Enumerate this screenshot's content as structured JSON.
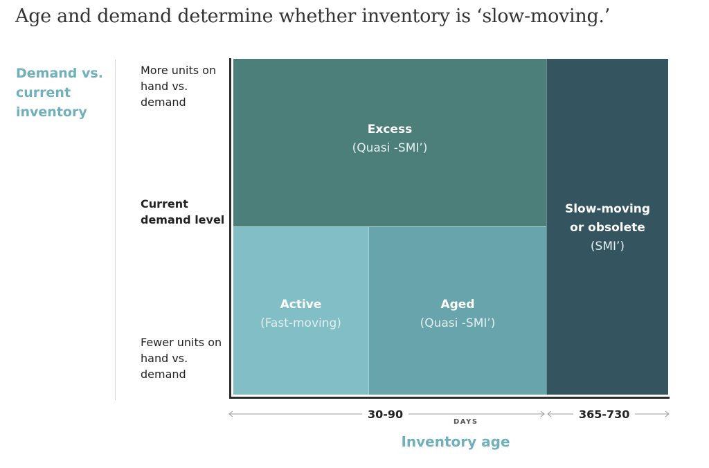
{
  "title": "Age and demand determine whether inventory is ‘slow-moving.’",
  "y_axis": {
    "title": "Demand vs. current inventory",
    "top_label": "More units on hand vs. demand",
    "mid_label": "Current demand level",
    "bottom_label": "Fewer units on hand vs. demand"
  },
  "categories": {
    "excess": {
      "label": "Excess",
      "sub": "(Quasi -SMI’)"
    },
    "active": {
      "label": "Active",
      "sub": "(Fast-moving)"
    },
    "aged": {
      "label": "Aged",
      "sub": "(Quasi -SMI’)"
    },
    "slow": {
      "label": "Slow-moving\nor obsolete",
      "sub": "(SMI’)"
    }
  },
  "x_axis": {
    "title": "Inventory age",
    "unit": "DAYS",
    "range_1": "30-90",
    "range_2": "365-730"
  },
  "colors": {
    "excess": "#4c7e7a",
    "slow": "#34555f",
    "active": "#82bec5",
    "aged": "#68a4ab",
    "accent_text": "#6fb0ba"
  }
}
